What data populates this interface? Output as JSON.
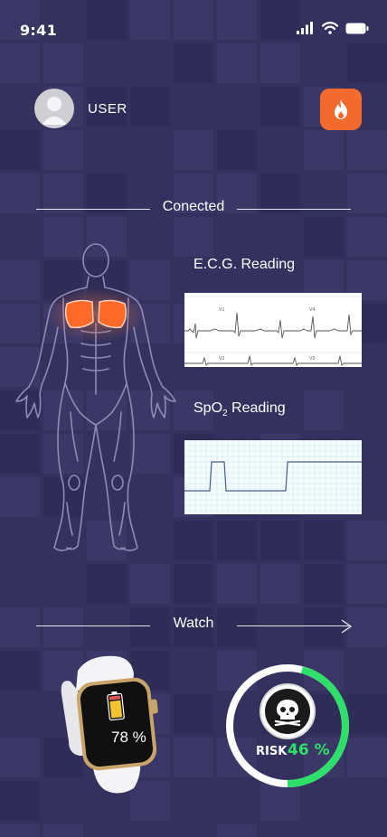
{
  "status_bar": {
    "time": "9:41"
  },
  "header": {
    "user_name": "USER"
  },
  "connection": {
    "label": "Conected"
  },
  "readings": {
    "ecg_title": "E.C.G. Reading",
    "spo2_title_main": "SpO",
    "spo2_title_sub": "2",
    "spo2_title_rest": " Reading"
  },
  "watch_section": {
    "label": "Watch",
    "battery_text": "78 %",
    "battery_level": 0.78
  },
  "risk": {
    "label": "RISK",
    "value_text": "46 %",
    "level": 0.46
  },
  "colors": {
    "background": "#34315e",
    "accent_orange": "#f26a2e",
    "risk_green": "#2ee06a",
    "body_glow": "#ff6a2a",
    "battery_yellow": "#f2c230"
  },
  "icons": {
    "signal": "signal-icon",
    "wifi": "wifi-icon",
    "battery": "battery-icon",
    "fire": "fire-icon",
    "skull": "skull-icon",
    "arrow": "arrow-right-icon"
  }
}
